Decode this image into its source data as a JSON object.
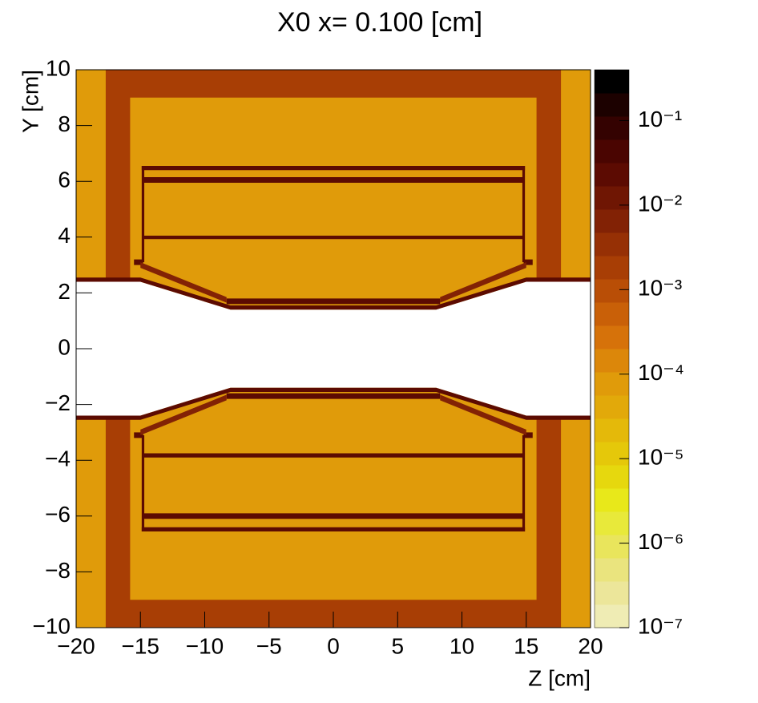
{
  "chart_data": {
    "type": "heatmap",
    "title": "X0 x=  0.100 [cm]",
    "x_label": "Z [cm]",
    "y_label": "Y [cm]",
    "xlim": [
      -20,
      20
    ],
    "ylim": [
      -10,
      10
    ],
    "xticks": [
      {
        "value": -20,
        "label": "−20"
      },
      {
        "value": -15,
        "label": "−15"
      },
      {
        "value": -10,
        "label": "−10"
      },
      {
        "value": -5,
        "label": "−5"
      },
      0,
      5,
      10,
      15,
      20
    ],
    "yticks": [
      {
        "value": -10,
        "label": "−10"
      },
      {
        "value": -8,
        "label": "−8"
      },
      {
        "value": -6,
        "label": "−6"
      },
      {
        "value": -4,
        "label": "−4"
      },
      {
        "value": -2,
        "label": "−2"
      },
      0,
      2,
      4,
      6,
      8,
      10
    ],
    "zlim": [
      1e-07,
      0.4
    ],
    "zlog": true,
    "zticks": [
      {
        "value": 1e-07,
        "label": "10⁻⁷"
      },
      {
        "value": 1e-06,
        "label": "10⁻⁶"
      },
      {
        "value": 1e-05,
        "label": "10⁻⁵"
      },
      {
        "value": 0.0001,
        "label": "10⁻⁴"
      },
      {
        "value": 0.001,
        "label": "10⁻³"
      },
      {
        "value": 0.01,
        "label": "10⁻²"
      },
      {
        "value": 0.1,
        "label": "10⁻¹"
      }
    ],
    "palette": [
      "#efecb4",
      "#ece69a",
      "#eae47e",
      "#e9e55c",
      "#e8e93a",
      "#e8e81a",
      "#e6d80e",
      "#e5c80a",
      "#e4b90a",
      "#e2a90a",
      "#e09b0a",
      "#dc870a",
      "#d6720a",
      "#c96008",
      "#b94e06",
      "#a83e05",
      "#963005",
      "#822205",
      "#6f1603",
      "#5c0b02",
      "#4a0501",
      "#340201",
      "#1c0100",
      "#000000"
    ],
    "regions": [
      {
        "points": [
          [
            -20,
            -10
          ],
          [
            20,
            -10
          ],
          [
            20,
            10
          ],
          [
            -20,
            10
          ]
        ],
        "value": 6e-05
      },
      {
        "points": [
          [
            -17.7,
            2.5
          ],
          [
            17.7,
            2.5
          ],
          [
            17.7,
            10
          ],
          [
            -17.7,
            10
          ]
        ],
        "value": 0.0018
      },
      {
        "points": [
          [
            -15.8,
            2.5
          ],
          [
            15.8,
            2.5
          ],
          [
            15.8,
            9
          ],
          [
            -15.8,
            9
          ]
        ],
        "value": 6e-05
      },
      {
        "points": [
          [
            -17.7,
            -2.5
          ],
          [
            17.7,
            -2.5
          ],
          [
            17.7,
            -10
          ],
          [
            -17.7,
            -10
          ]
        ],
        "value": 0.0018
      },
      {
        "points": [
          [
            -15.8,
            -2.5
          ],
          [
            15.8,
            -2.5
          ],
          [
            15.8,
            -9
          ],
          [
            -15.8,
            -9
          ]
        ],
        "value": 6e-05
      },
      {
        "points": [
          [
            -20,
            2.4
          ],
          [
            -15,
            2.4
          ],
          [
            -8,
            1.4
          ],
          [
            8,
            1.4
          ],
          [
            15,
            2.4
          ],
          [
            20,
            2.4
          ],
          [
            20,
            -2.4
          ],
          [
            15,
            -2.4
          ],
          [
            8,
            -1.4
          ],
          [
            -8,
            -1.4
          ],
          [
            -15,
            -2.4
          ],
          [
            -20,
            -2.4
          ]
        ],
        "value": null
      },
      {
        "points": [
          [
            -20,
            2.4
          ],
          [
            -15,
            2.4
          ],
          [
            -8,
            1.4
          ],
          [
            8,
            1.4
          ],
          [
            15,
            2.4
          ],
          [
            20,
            2.4
          ],
          [
            20,
            2.55
          ],
          [
            15,
            2.55
          ],
          [
            8,
            1.55
          ],
          [
            -8,
            1.55
          ],
          [
            -15,
            2.55
          ],
          [
            -20,
            2.55
          ]
        ],
        "value": 0.023
      },
      {
        "points": [
          [
            -20,
            -2.4
          ],
          [
            -15,
            -2.4
          ],
          [
            -8,
            -1.4
          ],
          [
            8,
            -1.4
          ],
          [
            15,
            -2.4
          ],
          [
            20,
            -2.4
          ],
          [
            20,
            -2.55
          ],
          [
            15,
            -2.55
          ],
          [
            8,
            -1.55
          ],
          [
            -8,
            -1.55
          ],
          [
            -15,
            -2.55
          ],
          [
            -20,
            -2.55
          ]
        ],
        "value": 0.023
      },
      {
        "points": [
          [
            -14.9,
            3.1
          ],
          [
            -14.7,
            3.1
          ],
          [
            -14.7,
            6.55
          ],
          [
            -14.9,
            6.55
          ]
        ],
        "value": 0.023
      },
      {
        "points": [
          [
            14.7,
            3.1
          ],
          [
            14.9,
            3.1
          ],
          [
            14.9,
            6.55
          ],
          [
            14.7,
            6.55
          ]
        ],
        "value": 0.023
      },
      {
        "points": [
          [
            -14.9,
            6.4
          ],
          [
            14.9,
            6.4
          ],
          [
            14.9,
            6.55
          ],
          [
            -14.9,
            6.55
          ]
        ],
        "value": 0.023
      },
      {
        "points": [
          [
            -14.8,
            5.95
          ],
          [
            14.8,
            5.95
          ],
          [
            14.8,
            6.15
          ],
          [
            -14.8,
            6.15
          ]
        ],
        "value": 0.023
      },
      {
        "points": [
          [
            -14.8,
            3.93
          ],
          [
            14.8,
            3.93
          ],
          [
            14.8,
            4.05
          ],
          [
            -14.8,
            4.05
          ]
        ],
        "value": 0.023
      },
      {
        "points": [
          [
            -8.3,
            1.6
          ],
          [
            8.3,
            1.6
          ],
          [
            8.3,
            1.8
          ],
          [
            -8.3,
            1.8
          ]
        ],
        "value": 0.023
      },
      {
        "points": [
          [
            -15.5,
            3.0
          ],
          [
            -14.8,
            3.0
          ],
          [
            -14.8,
            3.2
          ],
          [
            -15.5,
            3.2
          ]
        ],
        "value": 0.023
      },
      {
        "points": [
          [
            14.8,
            3.0
          ],
          [
            15.5,
            3.0
          ],
          [
            15.5,
            3.2
          ],
          [
            14.8,
            3.2
          ]
        ],
        "value": 0.023
      },
      {
        "points": [
          [
            -15,
            3.1
          ],
          [
            -8.3,
            1.85
          ],
          [
            -8.3,
            1.65
          ],
          [
            -15,
            2.9
          ]
        ],
        "value": 0.006
      },
      {
        "points": [
          [
            15,
            3.1
          ],
          [
            8.3,
            1.85
          ],
          [
            8.3,
            1.65
          ],
          [
            15,
            2.9
          ]
        ],
        "value": 0.006
      },
      {
        "points": [
          [
            -14.9,
            -3.1
          ],
          [
            -14.7,
            -3.1
          ],
          [
            -14.7,
            -6.55
          ],
          [
            -14.9,
            -6.55
          ]
        ],
        "value": 0.023
      },
      {
        "points": [
          [
            14.7,
            -3.1
          ],
          [
            14.9,
            -3.1
          ],
          [
            14.9,
            -6.55
          ],
          [
            14.7,
            -6.55
          ]
        ],
        "value": 0.023
      },
      {
        "points": [
          [
            -14.9,
            -6.4
          ],
          [
            14.9,
            -6.4
          ],
          [
            14.9,
            -6.55
          ],
          [
            -14.9,
            -6.55
          ]
        ],
        "value": 0.023
      },
      {
        "points": [
          [
            -14.8,
            -5.9
          ],
          [
            14.8,
            -5.9
          ],
          [
            14.8,
            -6.1
          ],
          [
            -14.8,
            -6.1
          ]
        ],
        "value": 0.023
      },
      {
        "points": [
          [
            -14.8,
            -3.75
          ],
          [
            14.8,
            -3.75
          ],
          [
            14.8,
            -3.9
          ],
          [
            -14.8,
            -3.9
          ]
        ],
        "value": 0.023
      },
      {
        "points": [
          [
            -8.3,
            -1.6
          ],
          [
            8.3,
            -1.6
          ],
          [
            8.3,
            -1.8
          ],
          [
            -8.3,
            -1.8
          ]
        ],
        "value": 0.023
      },
      {
        "points": [
          [
            -15.5,
            -3.0
          ],
          [
            -14.8,
            -3.0
          ],
          [
            -14.8,
            -3.2
          ],
          [
            -15.5,
            -3.2
          ]
        ],
        "value": 0.023
      },
      {
        "points": [
          [
            14.8,
            -3.0
          ],
          [
            15.5,
            -3.0
          ],
          [
            15.5,
            -3.2
          ],
          [
            14.8,
            -3.2
          ]
        ],
        "value": 0.023
      },
      {
        "points": [
          [
            -15,
            -3.1
          ],
          [
            -8.3,
            -1.85
          ],
          [
            -8.3,
            -1.65
          ],
          [
            -15,
            -2.9
          ]
        ],
        "value": 0.006
      },
      {
        "points": [
          [
            15,
            -3.1
          ],
          [
            8.3,
            -1.85
          ],
          [
            8.3,
            -1.65
          ],
          [
            15,
            -2.9
          ]
        ],
        "value": 0.006
      }
    ]
  }
}
